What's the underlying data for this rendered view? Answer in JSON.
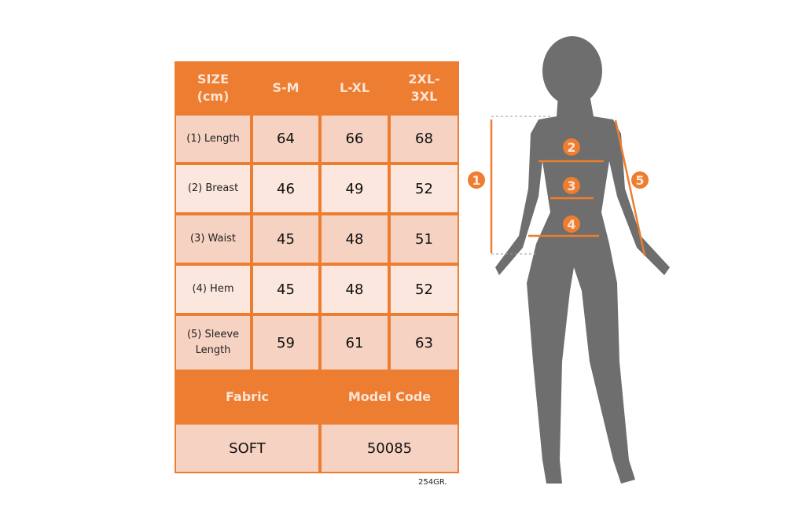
{
  "table": {
    "headers": [
      "SIZE\n(cm)",
      "S-M",
      "L-XL",
      "2XL-\n3XL"
    ],
    "rows": [
      {
        "label": "(1) Length",
        "values": [
          "64",
          "66",
          "68"
        ]
      },
      {
        "label": "(2) Breast",
        "values": [
          "46",
          "49",
          "52"
        ]
      },
      {
        "label": "(3) Waist",
        "values": [
          "45",
          "48",
          "51"
        ]
      },
      {
        "label": "(4) Hem",
        "values": [
          "45",
          "48",
          "52"
        ]
      },
      {
        "label": "(5) Sleeve\nLength",
        "values": [
          "59",
          "61",
          "63"
        ]
      }
    ],
    "footer_headers": [
      "Fabric",
      "Model Code"
    ],
    "footer_values": [
      "SOFT",
      "50085"
    ]
  },
  "weight_note": "254GR.",
  "figure": {
    "markers": [
      "1",
      "2",
      "3",
      "4",
      "5"
    ]
  },
  "colors": {
    "accent": "#ED7D31",
    "row_dark": "#F6D2C2",
    "row_light": "#FBE7DD",
    "silhouette": "#6E6E6E"
  }
}
